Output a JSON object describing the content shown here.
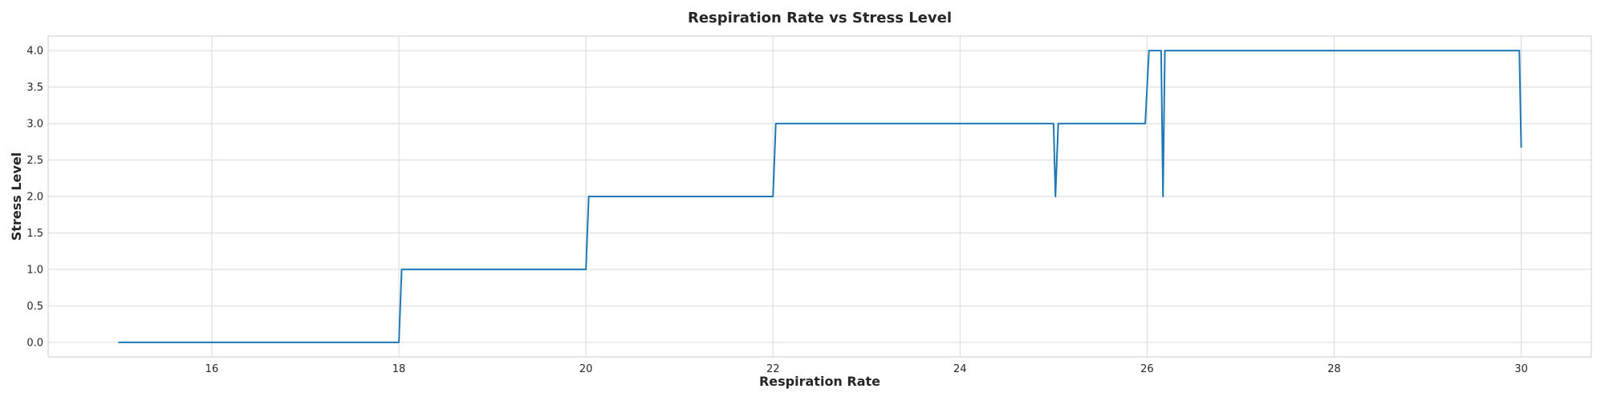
{
  "chart_data": {
    "type": "line",
    "title": "Respiration Rate vs Stress Level",
    "xlabel": "Respiration Rate",
    "ylabel": "Stress Level",
    "xlim": [
      14.25,
      30.75
    ],
    "ylim": [
      -0.2,
      4.2
    ],
    "xticks": [
      16,
      18,
      20,
      22,
      24,
      26,
      28,
      30
    ],
    "xtick_labels": [
      "16",
      "18",
      "20",
      "22",
      "24",
      "26",
      "28",
      "30"
    ],
    "yticks": [
      0.0,
      0.5,
      1.0,
      1.5,
      2.0,
      2.5,
      3.0,
      3.5,
      4.0
    ],
    "ytick_labels": [
      "0.0",
      "0.5",
      "1.0",
      "1.5",
      "2.0",
      "2.5",
      "3.0",
      "3.5",
      "4.0"
    ],
    "grid": true,
    "legend": "none",
    "series": [
      {
        "color": "#1f77b4",
        "x": [
          15.0,
          18.0,
          18.03,
          20.0,
          20.03,
          22.0,
          22.03,
          25.0,
          25.02,
          25.05,
          25.98,
          26.02,
          26.15,
          26.17,
          26.19,
          29.98,
          30.0
        ],
        "y": [
          0,
          0,
          1,
          1,
          2,
          2,
          3,
          3,
          2,
          3,
          3,
          4,
          4,
          2,
          4,
          4,
          2.67
        ]
      }
    ]
  }
}
